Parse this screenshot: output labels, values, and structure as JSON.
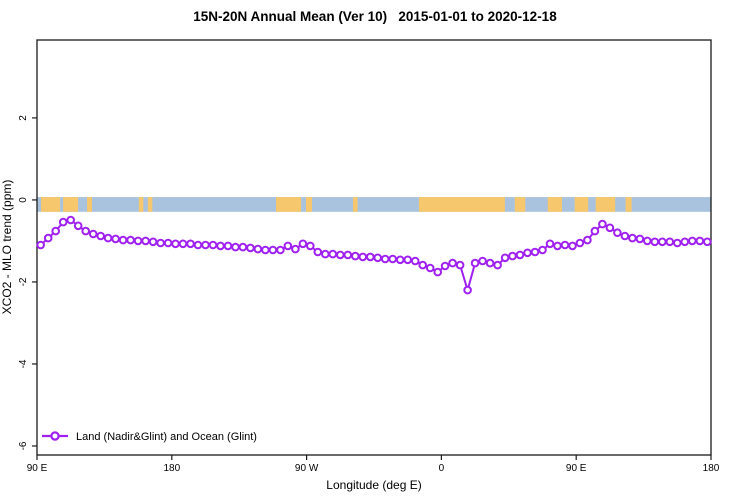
{
  "title": "15N-20N Annual Mean (Ver 10)   2015-01-01 to 2020-12-18",
  "chart_data": {
    "type": "line",
    "title": "15N-20N Annual Mean (Ver 10)   2015-01-01 to 2020-12-18",
    "xlabel": "Longitude (deg E)",
    "ylabel": "XCO2 - MLO trend (ppm)",
    "xlim": [
      90,
      540
    ],
    "ylim": [
      -6.22,
      3.9
    ],
    "grid": false,
    "xticks": {
      "pos": [
        90,
        180,
        270,
        360,
        450,
        540
      ],
      "labels": [
        "90 E",
        "180",
        "90 W",
        "0",
        "90 E",
        "180"
      ]
    },
    "yticks": {
      "pos": [
        2,
        0,
        -2,
        -4,
        -6
      ],
      "labels": [
        "2",
        "0",
        "-2",
        "-4",
        "-6"
      ]
    },
    "legend": {
      "position": "bottom-left",
      "entries": [
        {
          "label": "Land (Nadir&Glint) and Ocean (Glint)",
          "color": "#A020F0",
          "marker": "open-circle"
        }
      ]
    },
    "series": [
      {
        "name": "Land (Nadir&Glint) and Ocean (Glint)",
        "color": "#A020F0",
        "x_start": 92.5,
        "x_step": 5,
        "values": [
          -1.1,
          -0.93,
          -0.76,
          -0.54,
          -0.49,
          -0.63,
          -0.76,
          -0.83,
          -0.88,
          -0.93,
          -0.95,
          -0.98,
          -0.98,
          -1.0,
          -1.0,
          -1.02,
          -1.05,
          -1.05,
          -1.07,
          -1.07,
          -1.07,
          -1.1,
          -1.1,
          -1.1,
          -1.12,
          -1.12,
          -1.15,
          -1.15,
          -1.17,
          -1.2,
          -1.22,
          -1.22,
          -1.22,
          -1.12,
          -1.2,
          -1.07,
          -1.12,
          -1.27,
          -1.32,
          -1.32,
          -1.34,
          -1.34,
          -1.37,
          -1.39,
          -1.39,
          -1.41,
          -1.44,
          -1.44,
          -1.46,
          -1.46,
          -1.49,
          -1.59,
          -1.66,
          -1.76,
          -1.61,
          -1.54,
          -1.59,
          -2.2,
          -1.54,
          -1.49,
          -1.54,
          -1.59,
          -1.41,
          -1.37,
          -1.34,
          -1.29,
          -1.27,
          -1.22,
          -1.07,
          -1.12,
          -1.1,
          -1.12,
          -1.05,
          -0.98,
          -0.76,
          -0.59,
          -0.68,
          -0.8,
          -0.88,
          -0.93,
          -0.95,
          -1.0,
          -1.02,
          -1.02,
          -1.02,
          -1.05,
          -1.02,
          -1.0,
          -1.0,
          -1.02
        ]
      }
    ],
    "map_band": {
      "value_top": 0.07,
      "value_bottom": -0.29,
      "ocean_color": "#A9C3DF",
      "land_color": "#F6C76C",
      "land_segments": [
        [
          92.7,
          105.4
        ],
        [
          107.4,
          117.4
        ],
        [
          123.4,
          126.7
        ],
        [
          158,
          161
        ],
        [
          164,
          167
        ],
        [
          249.6,
          266.3
        ],
        [
          269.6,
          273.6
        ],
        [
          301,
          304
        ],
        [
          345,
          402.4
        ],
        [
          409,
          416
        ],
        [
          431,
          440.5
        ],
        [
          449,
          458
        ],
        [
          463,
          476
        ],
        [
          483,
          487
        ]
      ]
    }
  },
  "colors": {
    "accent": "#A020F0",
    "ocean": "#A9C3DF",
    "land": "#F6C76C",
    "axis": "#1a1a1a"
  }
}
